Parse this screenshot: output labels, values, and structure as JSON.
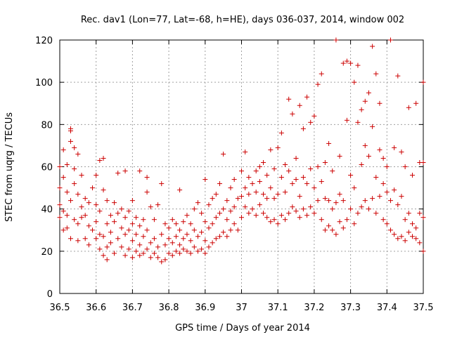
{
  "chart_data": {
    "type": "scatter",
    "title": "Rec. dav1 (Lon=77, Lat=-68, h=HE), days 036-037, 2014, window 002",
    "xlabel": "GPS time / Days of year 2014",
    "ylabel": "STEC from uqrg / TECUs",
    "xlim": [
      36.5,
      37.5
    ],
    "ylim": [
      0,
      120
    ],
    "xticks": [
      "36.5",
      "36.6",
      "36.7",
      "36.8",
      "36.9",
      "37",
      "37.1",
      "37.2",
      "37.3",
      "37.4",
      "37.5"
    ],
    "yticks": [
      "0",
      "20",
      "40",
      "60",
      "80",
      "100",
      "120"
    ],
    "grid": true,
    "marker": "+",
    "color": "#cc0000",
    "series": [
      {
        "points": [
          [
            36.5,
            36
          ],
          [
            36.5,
            42
          ],
          [
            36.5,
            50
          ],
          [
            36.5,
            60
          ],
          [
            36.51,
            30
          ],
          [
            36.51,
            39
          ],
          [
            36.51,
            55
          ],
          [
            36.51,
            68
          ],
          [
            36.52,
            31
          ],
          [
            36.52,
            37
          ],
          [
            36.52,
            48
          ],
          [
            36.52,
            61
          ],
          [
            36.53,
            26
          ],
          [
            36.53,
            44
          ],
          [
            36.53,
            72
          ],
          [
            36.53,
            77
          ],
          [
            36.53,
            78
          ],
          [
            36.54,
            35
          ],
          [
            36.54,
            52
          ],
          [
            36.54,
            59
          ],
          [
            36.54,
            69
          ],
          [
            36.55,
            25
          ],
          [
            36.55,
            33
          ],
          [
            36.55,
            47
          ],
          [
            36.55,
            66
          ],
          [
            36.56,
            36
          ],
          [
            36.56,
            41
          ],
          [
            36.56,
            56
          ],
          [
            36.57,
            26
          ],
          [
            36.57,
            37
          ],
          [
            36.57,
            45
          ],
          [
            36.58,
            23
          ],
          [
            36.58,
            32
          ],
          [
            36.58,
            43
          ],
          [
            36.59,
            30
          ],
          [
            36.59,
            50
          ],
          [
            36.6,
            26
          ],
          [
            36.6,
            34
          ],
          [
            36.6,
            42
          ],
          [
            36.6,
            56
          ],
          [
            36.61,
            21
          ],
          [
            36.61,
            28
          ],
          [
            36.61,
            39
          ],
          [
            36.61,
            63
          ],
          [
            36.62,
            18
          ],
          [
            36.62,
            27
          ],
          [
            36.62,
            49
          ],
          [
            36.62,
            64
          ],
          [
            36.63,
            16
          ],
          [
            36.63,
            22
          ],
          [
            36.63,
            33
          ],
          [
            36.63,
            44
          ],
          [
            36.64,
            24
          ],
          [
            36.64,
            29
          ],
          [
            36.64,
            37
          ],
          [
            36.65,
            19
          ],
          [
            36.65,
            34
          ],
          [
            36.65,
            43
          ],
          [
            36.66,
            26
          ],
          [
            36.66,
            38
          ],
          [
            36.66,
            57
          ],
          [
            36.67,
            22
          ],
          [
            36.67,
            31
          ],
          [
            36.67,
            40
          ],
          [
            36.68,
            18
          ],
          [
            36.68,
            28
          ],
          [
            36.68,
            36
          ],
          [
            36.68,
            58
          ],
          [
            36.69,
            21
          ],
          [
            36.69,
            30
          ],
          [
            36.69,
            39
          ],
          [
            36.7,
            17
          ],
          [
            36.7,
            25
          ],
          [
            36.7,
            33
          ],
          [
            36.7,
            44
          ],
          [
            36.71,
            20
          ],
          [
            36.71,
            28
          ],
          [
            36.71,
            36
          ],
          [
            36.72,
            18
          ],
          [
            36.72,
            23
          ],
          [
            36.72,
            32
          ],
          [
            36.72,
            58
          ],
          [
            36.73,
            19
          ],
          [
            36.73,
            27
          ],
          [
            36.73,
            35
          ],
          [
            36.74,
            21
          ],
          [
            36.74,
            30
          ],
          [
            36.74,
            48
          ],
          [
            36.74,
            55
          ],
          [
            36.75,
            17
          ],
          [
            36.75,
            24
          ],
          [
            36.75,
            41
          ],
          [
            36.76,
            19
          ],
          [
            36.76,
            26
          ],
          [
            36.76,
            35
          ],
          [
            36.77,
            17
          ],
          [
            36.77,
            22
          ],
          [
            36.77,
            42
          ],
          [
            36.78,
            15
          ],
          [
            36.78,
            28
          ],
          [
            36.78,
            52
          ],
          [
            36.79,
            16
          ],
          [
            36.79,
            23
          ],
          [
            36.79,
            33
          ],
          [
            36.8,
            19
          ],
          [
            36.8,
            26
          ],
          [
            36.8,
            31
          ],
          [
            36.81,
            18
          ],
          [
            36.81,
            24
          ],
          [
            36.81,
            35
          ],
          [
            36.82,
            20
          ],
          [
            36.82,
            27
          ],
          [
            36.82,
            33
          ],
          [
            36.83,
            19
          ],
          [
            36.83,
            23
          ],
          [
            36.83,
            30
          ],
          [
            36.83,
            49
          ],
          [
            36.84,
            21
          ],
          [
            36.84,
            26
          ],
          [
            36.84,
            34
          ],
          [
            36.85,
            20
          ],
          [
            36.85,
            28
          ],
          [
            36.85,
            37
          ],
          [
            36.86,
            19
          ],
          [
            36.86,
            25
          ],
          [
            36.86,
            33
          ],
          [
            36.87,
            22
          ],
          [
            36.87,
            30
          ],
          [
            36.87,
            40
          ],
          [
            36.88,
            20
          ],
          [
            36.88,
            27
          ],
          [
            36.88,
            43
          ],
          [
            36.89,
            21
          ],
          [
            36.89,
            29
          ],
          [
            36.89,
            38
          ],
          [
            36.9,
            19
          ],
          [
            36.9,
            25
          ],
          [
            36.9,
            34
          ],
          [
            36.9,
            54
          ],
          [
            36.91,
            22
          ],
          [
            36.91,
            31
          ],
          [
            36.91,
            42
          ],
          [
            36.92,
            24
          ],
          [
            36.92,
            33
          ],
          [
            36.92,
            45
          ],
          [
            36.93,
            26
          ],
          [
            36.93,
            36
          ],
          [
            36.93,
            47
          ],
          [
            36.94,
            27
          ],
          [
            36.94,
            38
          ],
          [
            36.94,
            52
          ],
          [
            36.95,
            29
          ],
          [
            36.95,
            40
          ],
          [
            36.95,
            66
          ],
          [
            36.96,
            27
          ],
          [
            36.96,
            35
          ],
          [
            36.96,
            44
          ],
          [
            36.97,
            30
          ],
          [
            36.97,
            39
          ],
          [
            36.97,
            50
          ],
          [
            36.98,
            33
          ],
          [
            36.98,
            41
          ],
          [
            36.98,
            54
          ],
          [
            36.99,
            30
          ],
          [
            36.99,
            45
          ],
          [
            37.0,
            36
          ],
          [
            37.0,
            46
          ],
          [
            37.0,
            58
          ],
          [
            37.01,
            41
          ],
          [
            37.01,
            50
          ],
          [
            37.01,
            67
          ],
          [
            37.02,
            38
          ],
          [
            37.02,
            47
          ],
          [
            37.02,
            55
          ],
          [
            37.03,
            40
          ],
          [
            37.03,
            52
          ],
          [
            37.04,
            37
          ],
          [
            37.04,
            48
          ],
          [
            37.04,
            58
          ],
          [
            37.05,
            42
          ],
          [
            37.05,
            53
          ],
          [
            37.05,
            60
          ],
          [
            37.06,
            38
          ],
          [
            37.06,
            47
          ],
          [
            37.06,
            62
          ],
          [
            37.07,
            36
          ],
          [
            37.07,
            45
          ],
          [
            37.07,
            56
          ],
          [
            37.08,
            34
          ],
          [
            37.08,
            50
          ],
          [
            37.08,
            68
          ],
          [
            37.09,
            35
          ],
          [
            37.09,
            45
          ],
          [
            37.09,
            59
          ],
          [
            37.1,
            33
          ],
          [
            37.1,
            47
          ],
          [
            37.1,
            69
          ],
          [
            37.11,
            37
          ],
          [
            37.11,
            55
          ],
          [
            37.11,
            76
          ],
          [
            37.12,
            35
          ],
          [
            37.12,
            48
          ],
          [
            37.12,
            61
          ],
          [
            37.13,
            38
          ],
          [
            37.13,
            58
          ],
          [
            37.13,
            92
          ],
          [
            37.14,
            41
          ],
          [
            37.14,
            52
          ],
          [
            37.14,
            85
          ],
          [
            37.15,
            39
          ],
          [
            37.15,
            54
          ],
          [
            37.15,
            64
          ],
          [
            37.16,
            36
          ],
          [
            37.16,
            46
          ],
          [
            37.16,
            89
          ],
          [
            37.17,
            40
          ],
          [
            37.17,
            55
          ],
          [
            37.17,
            78
          ],
          [
            37.18,
            37
          ],
          [
            37.18,
            52
          ],
          [
            37.18,
            93
          ],
          [
            37.19,
            41
          ],
          [
            37.19,
            59
          ],
          [
            37.19,
            81
          ],
          [
            37.2,
            38
          ],
          [
            37.2,
            50
          ],
          [
            37.2,
            84
          ],
          [
            37.21,
            44
          ],
          [
            37.21,
            60
          ],
          [
            37.21,
            99
          ],
          [
            37.22,
            35
          ],
          [
            37.22,
            53
          ],
          [
            37.22,
            104
          ],
          [
            37.23,
            30
          ],
          [
            37.23,
            45
          ],
          [
            37.23,
            62
          ],
          [
            37.24,
            32
          ],
          [
            37.24,
            44
          ],
          [
            37.24,
            71
          ],
          [
            37.25,
            30
          ],
          [
            37.25,
            40
          ],
          [
            37.25,
            58
          ],
          [
            37.26,
            28
          ],
          [
            37.26,
            43
          ],
          [
            37.26,
            120
          ],
          [
            37.27,
            34
          ],
          [
            37.27,
            47
          ],
          [
            37.27,
            65
          ],
          [
            37.28,
            31
          ],
          [
            37.28,
            44
          ],
          [
            37.28,
            109
          ],
          [
            37.29,
            35
          ],
          [
            37.29,
            82
          ],
          [
            37.29,
            110
          ],
          [
            37.3,
            40
          ],
          [
            37.3,
            56
          ],
          [
            37.3,
            109
          ],
          [
            37.31,
            33
          ],
          [
            37.31,
            50
          ],
          [
            37.31,
            100
          ],
          [
            37.32,
            38
          ],
          [
            37.32,
            81
          ],
          [
            37.32,
            108
          ],
          [
            37.33,
            41
          ],
          [
            37.33,
            61
          ],
          [
            37.33,
            87
          ],
          [
            37.34,
            44
          ],
          [
            37.34,
            70
          ],
          [
            37.34,
            91
          ],
          [
            37.35,
            40
          ],
          [
            37.35,
            65
          ],
          [
            37.35,
            95
          ],
          [
            37.36,
            45
          ],
          [
            37.36,
            79
          ],
          [
            37.36,
            117
          ],
          [
            37.37,
            38
          ],
          [
            37.37,
            55
          ],
          [
            37.37,
            104
          ],
          [
            37.38,
            46
          ],
          [
            37.38,
            68
          ],
          [
            37.38,
            90
          ],
          [
            37.39,
            35
          ],
          [
            37.39,
            52
          ],
          [
            37.39,
            64
          ],
          [
            37.4,
            33
          ],
          [
            37.4,
            48
          ],
          [
            37.4,
            60
          ],
          [
            37.41,
            30
          ],
          [
            37.41,
            44
          ],
          [
            37.41,
            120
          ],
          [
            37.42,
            28
          ],
          [
            37.42,
            49
          ],
          [
            37.42,
            69
          ],
          [
            37.43,
            26
          ],
          [
            37.43,
            42
          ],
          [
            37.43,
            103
          ],
          [
            37.44,
            27
          ],
          [
            37.44,
            46
          ],
          [
            37.44,
            67
          ],
          [
            37.45,
            25
          ],
          [
            37.45,
            35
          ],
          [
            37.45,
            60
          ],
          [
            37.46,
            29
          ],
          [
            37.46,
            38
          ],
          [
            37.46,
            88
          ],
          [
            37.47,
            27
          ],
          [
            37.47,
            33
          ],
          [
            37.47,
            56
          ],
          [
            37.48,
            26
          ],
          [
            37.48,
            31
          ],
          [
            37.48,
            90
          ],
          [
            37.49,
            24
          ],
          [
            37.49,
            38
          ],
          [
            37.49,
            62
          ],
          [
            37.5,
            20
          ],
          [
            37.5,
            36
          ],
          [
            37.5,
            62
          ],
          [
            37.5,
            100
          ]
        ]
      }
    ]
  }
}
